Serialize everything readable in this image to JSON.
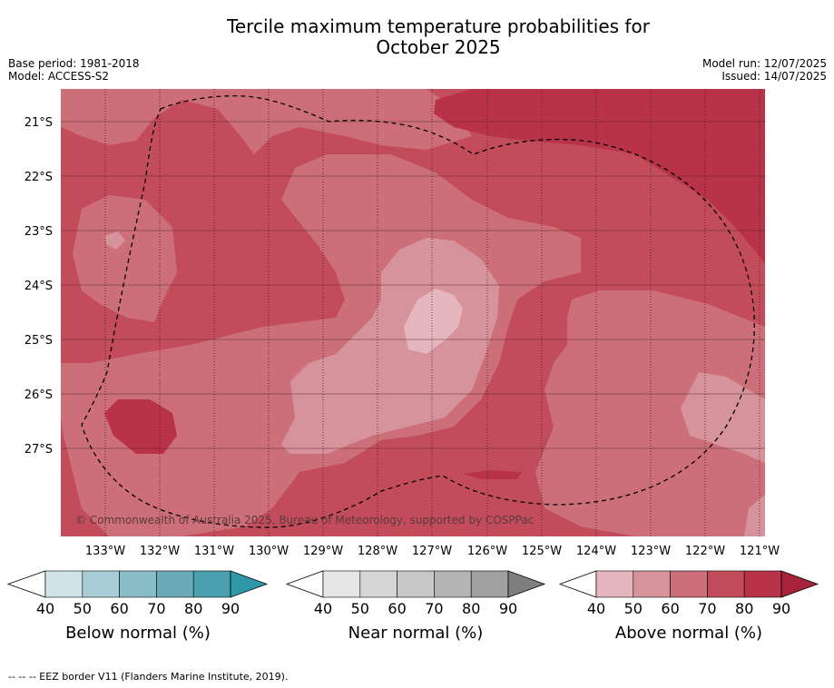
{
  "title_line1": "Tercile maximum temperature probabilities for",
  "title_line2": "October 2025",
  "meta_left": {
    "base_period": "Base period: 1981-2018",
    "model": "Model: ACCESS-S2"
  },
  "meta_right": {
    "model_run": "Model run: 12/07/2025",
    "issued": "Issued: 14/07/2025"
  },
  "map": {
    "lat_labels": [
      "21°S",
      "22°S",
      "23°S",
      "24°S",
      "25°S",
      "26°S",
      "27°S"
    ],
    "lon_labels": [
      "133°W",
      "132°W",
      "131°W",
      "130°W",
      "129°W",
      "128°W",
      "127°W",
      "126°W",
      "125°W",
      "124°W",
      "123°W",
      "122°W",
      "121°W"
    ],
    "copyright": "© Commonwealth of Australia 2025, Bureau of Meteorology, supported by COSPPac"
  },
  "legends": [
    {
      "label": "Below normal (%)",
      "ticks": [
        "40",
        "50",
        "60",
        "70",
        "80",
        "90"
      ],
      "colors": [
        "#cfe4e9",
        "#a9cdd4",
        "#88bcc6",
        "#6aabb7",
        "#4aa0ae",
        "#2f98a8"
      ]
    },
    {
      "label": "Near normal (%)",
      "ticks": [
        "40",
        "50",
        "60",
        "70",
        "80",
        "90"
      ],
      "colors": [
        "#e6e6e6",
        "#d6d6d6",
        "#c7c7c7",
        "#b4b4b4",
        "#a0a0a0",
        "#7e7e7e"
      ]
    },
    {
      "label": "Above normal (%)",
      "ticks": [
        "40",
        "50",
        "60",
        "70",
        "80",
        "90"
      ],
      "colors": [
        "#e5b6bd",
        "#d7939c",
        "#cd6f79",
        "#c24c5a",
        "#b83347",
        "#a8223a"
      ]
    }
  ],
  "footer": "--  --  -- EEZ border V11 (Flanders Marine Institute, 2019)."
}
